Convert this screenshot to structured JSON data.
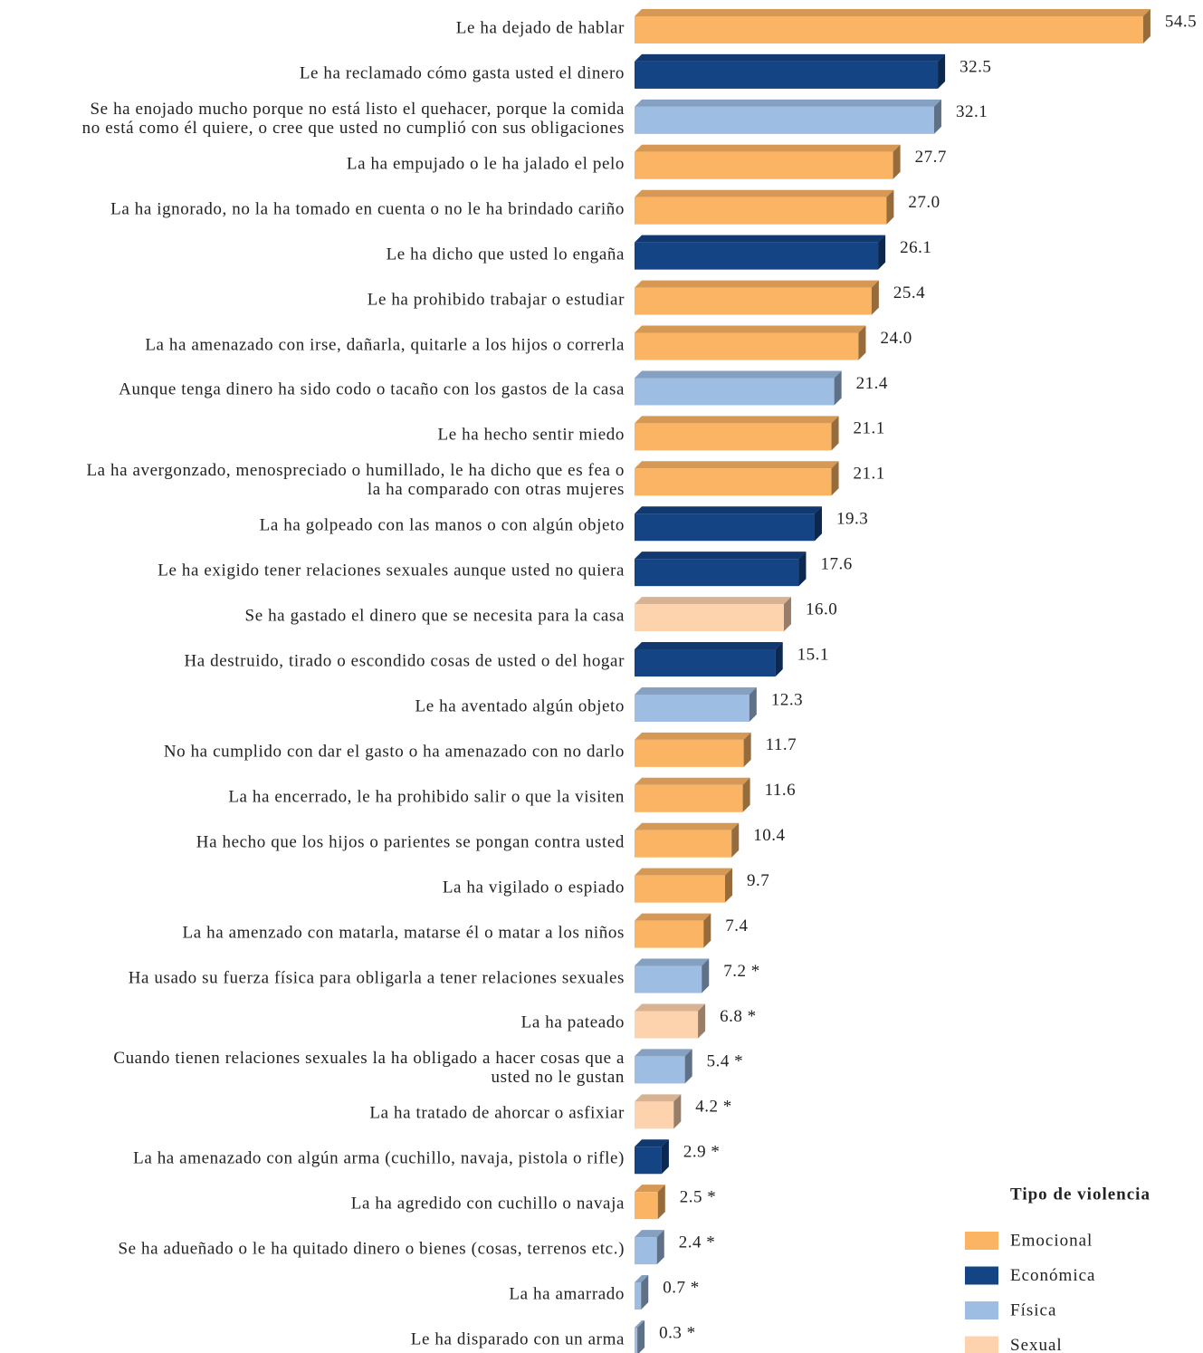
{
  "chart_data": {
    "type": "bar",
    "categories": [
      "Le ha dejado de hablar",
      "Le ha reclamado cómo gasta usted el dinero",
      "Se ha enojado mucho porque no está listo el quehacer, porque la comida\nno está como él quiere, o cree que usted no cumplió con sus obligaciones",
      "La ha empujado o le ha jalado el pelo",
      "La ha ignorado, no la ha tomado en cuenta o no le ha brindado cariño",
      "Le ha dicho que usted lo engaña",
      "Le ha prohibido trabajar o estudiar",
      "La ha amenazado con irse, dañarla, quitarle a los hijos o correrla",
      "Aunque tenga dinero ha sido codo o tacaño con los gastos de la casa",
      "Le ha hecho sentir miedo",
      "La ha avergonzado, menospreciado o humillado, le ha dicho que es fea o\nla ha comparado con otras mujeres",
      "La ha golpeado con las manos o con algún objeto",
      "Le ha exigido tener relaciones sexuales aunque usted no quiera",
      "Se ha gastado el dinero que se necesita para la casa",
      "Ha destruido, tirado o escondido cosas de usted o del hogar",
      "Le ha aventado algún objeto",
      "No ha cumplido con dar el gasto o ha amenazado con no darlo",
      "La ha encerrado, le ha prohibido salir o que la visiten",
      "Ha hecho que los hijos o parientes se pongan contra usted",
      "La ha vigilado o espiado",
      "La ha amenzado con matarla, matarse él o matar a los niños",
      "Ha usado su fuerza física para obligarla a tener relaciones sexuales",
      "La ha pateado",
      "Cuando tienen relaciones sexuales la ha obligado a hacer cosas  que a\nusted no le gustan",
      "La ha tratado de ahorcar o asfixiar",
      "La ha amenazado con algún arma (cuchillo, navaja, pistola o rifle)",
      "La ha agredido con cuchillo o navaja",
      "Se ha adueñado o le ha quitado dinero o bienes (cosas, terrenos etc.)",
      "La ha amarrado",
      "Le ha disparado con un arma"
    ],
    "series": [
      {
        "name": "Emocional",
        "color": "#fbb464",
        "values": [
          54.5,
          null,
          null,
          27.7,
          27.0,
          null,
          25.4,
          24.0,
          null,
          21.1,
          21.1,
          null,
          null,
          null,
          null,
          null,
          11.7,
          11.6,
          10.4,
          9.7,
          7.4,
          null,
          null,
          null,
          null,
          null,
          2.5,
          null,
          null,
          null
        ],
        "value_labels": [
          "54.5",
          null,
          null,
          "27.7",
          "27.0",
          null,
          "25.4",
          "24.0",
          null,
          "21.1",
          "21.1",
          null,
          null,
          null,
          null,
          null,
          "11.7",
          "11.6",
          "10.4",
          "9.7",
          "7.4",
          null,
          null,
          null,
          null,
          null,
          "2.5 *",
          null,
          null,
          null
        ]
      },
      {
        "name": "Económica",
        "color": "#154484",
        "values": [
          null,
          32.5,
          null,
          null,
          null,
          26.1,
          null,
          null,
          null,
          null,
          null,
          19.3,
          17.6,
          null,
          15.1,
          null,
          null,
          null,
          null,
          null,
          null,
          null,
          null,
          null,
          null,
          2.9,
          null,
          null,
          null,
          null
        ],
        "value_labels": [
          null,
          "32.5",
          null,
          null,
          null,
          "26.1",
          null,
          null,
          null,
          null,
          null,
          "19.3",
          "17.6",
          null,
          "15.1",
          null,
          null,
          null,
          null,
          null,
          null,
          null,
          null,
          null,
          null,
          "2.9 *",
          null,
          null,
          null,
          null
        ]
      },
      {
        "name": "Física",
        "color": "#9dbde2",
        "values": [
          null,
          null,
          32.1,
          null,
          null,
          null,
          null,
          null,
          21.4,
          null,
          null,
          null,
          null,
          null,
          null,
          12.3,
          null,
          null,
          null,
          null,
          null,
          7.2,
          null,
          5.4,
          null,
          null,
          null,
          2.4,
          0.7,
          0.3
        ],
        "value_labels": [
          null,
          null,
          "32.1",
          null,
          null,
          null,
          null,
          null,
          "21.4",
          null,
          null,
          null,
          null,
          null,
          null,
          "12.3",
          null,
          null,
          null,
          null,
          null,
          "7.2 *",
          null,
          "5.4 *",
          null,
          null,
          null,
          "2.4 *",
          "0.7 *",
          "0.3 *"
        ]
      },
      {
        "name": "Sexual",
        "color": "#fdd3ae",
        "values": [
          null,
          null,
          null,
          null,
          null,
          null,
          null,
          null,
          null,
          null,
          null,
          null,
          null,
          16.0,
          null,
          null,
          null,
          null,
          null,
          null,
          null,
          null,
          6.8,
          null,
          4.2,
          null,
          null,
          null,
          null,
          null
        ],
        "value_labels": [
          null,
          null,
          null,
          null,
          null,
          null,
          null,
          null,
          null,
          null,
          null,
          null,
          null,
          "16.0",
          null,
          null,
          null,
          null,
          null,
          null,
          null,
          null,
          "6.8 *",
          null,
          "4.2 *",
          null,
          null,
          null,
          null,
          null
        ]
      }
    ],
    "legend_title": "Tipo de violencia"
  }
}
